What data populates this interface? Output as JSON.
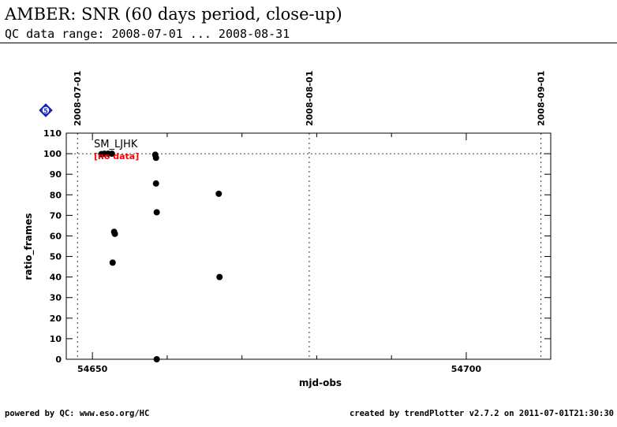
{
  "header": {
    "title": "AMBER: SNR (60 days period, close-up)",
    "subtitle": "QC data range: 2008-07-01 ... 2008-08-31"
  },
  "badge": {
    "label": "5"
  },
  "footer": {
    "left": "powered by QC: www.eso.org/HC",
    "right": "created by trendPlotter v2.7.2 on 2011-07-01T21:30:30"
  },
  "chart_data": {
    "type": "scatter",
    "xlabel": "mjd-obs",
    "ylabel": "ratio_frames",
    "xlim": [
      54646.5,
      54711.3
    ],
    "ylim": [
      0,
      110
    ],
    "x_major_ticks": [
      54650,
      54700
    ],
    "x_minor_ticks": [
      54660,
      54670,
      54680,
      54690
    ],
    "y_ticks": [
      0,
      10,
      20,
      30,
      40,
      50,
      60,
      70,
      80,
      90,
      100,
      110
    ],
    "reference_line_y": 100,
    "date_markers": [
      {
        "label": "2008-07-01",
        "mjd": 54648
      },
      {
        "label": "2008-08-01",
        "mjd": 54679
      },
      {
        "label": "2008-09-01",
        "mjd": 54710
      }
    ],
    "series_label": "SM_LJHK",
    "annotation": "[no data]",
    "annotation_color": "#ff0000",
    "point_color": "#000000",
    "points": [
      {
        "x": 54651.2,
        "y": 99.8
      },
      {
        "x": 54651.6,
        "y": 100
      },
      {
        "x": 54652.1,
        "y": 100
      },
      {
        "x": 54652.6,
        "y": 100
      },
      {
        "x": 54652.7,
        "y": 47
      },
      {
        "x": 54652.9,
        "y": 62
      },
      {
        "x": 54653.0,
        "y": 61
      },
      {
        "x": 54658.4,
        "y": 99.5
      },
      {
        "x": 54658.5,
        "y": 98
      },
      {
        "x": 54658.5,
        "y": 85.5
      },
      {
        "x": 54658.6,
        "y": 71.5
      },
      {
        "x": 54658.6,
        "y": 0
      },
      {
        "x": 54666.9,
        "y": 80.5
      },
      {
        "x": 54667.0,
        "y": 40
      }
    ]
  }
}
